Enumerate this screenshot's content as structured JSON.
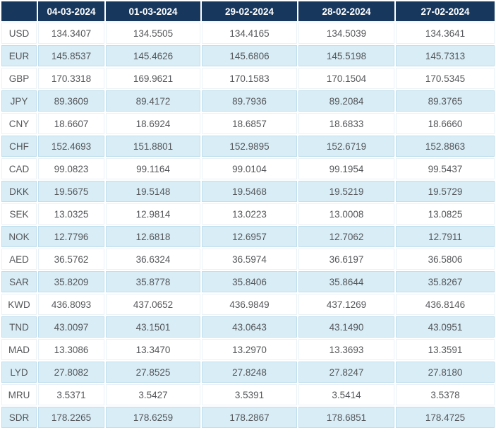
{
  "table": {
    "columns": [
      "",
      "04-03-2024",
      "01-03-2024",
      "29-02-2024",
      "28-02-2024",
      "27-02-2024"
    ],
    "rows": [
      {
        "code": "USD",
        "values": [
          "134.3407",
          "134.5505",
          "134.4165",
          "134.5039",
          "134.3641"
        ]
      },
      {
        "code": "EUR",
        "values": [
          "145.8537",
          "145.4626",
          "145.6806",
          "145.5198",
          "145.7313"
        ]
      },
      {
        "code": "GBP",
        "values": [
          "170.3318",
          "169.9621",
          "170.1583",
          "170.1504",
          "170.5345"
        ]
      },
      {
        "code": "JPY",
        "values": [
          "89.3609",
          "89.4172",
          "89.7936",
          "89.2084",
          "89.3765"
        ]
      },
      {
        "code": "CNY",
        "values": [
          "18.6607",
          "18.6924",
          "18.6857",
          "18.6833",
          "18.6660"
        ]
      },
      {
        "code": "CHF",
        "values": [
          "152.4693",
          "151.8801",
          "152.9895",
          "152.6719",
          "152.8863"
        ]
      },
      {
        "code": "CAD",
        "values": [
          "99.0823",
          "99.1164",
          "99.0104",
          "99.1954",
          "99.5437"
        ]
      },
      {
        "code": "DKK",
        "values": [
          "19.5675",
          "19.5148",
          "19.5468",
          "19.5219",
          "19.5729"
        ]
      },
      {
        "code": "SEK",
        "values": [
          "13.0325",
          "12.9814",
          "13.0223",
          "13.0008",
          "13.0825"
        ]
      },
      {
        "code": "NOK",
        "values": [
          "12.7796",
          "12.6818",
          "12.6957",
          "12.7062",
          "12.7911"
        ]
      },
      {
        "code": "AED",
        "values": [
          "36.5762",
          "36.6324",
          "36.5974",
          "36.6197",
          "36.5806"
        ]
      },
      {
        "code": "SAR",
        "values": [
          "35.8209",
          "35.8778",
          "35.8406",
          "35.8644",
          "35.8267"
        ]
      },
      {
        "code": "KWD",
        "values": [
          "436.8093",
          "437.0652",
          "436.9849",
          "437.1269",
          "436.8146"
        ]
      },
      {
        "code": "TND",
        "values": [
          "43.0097",
          "43.1501",
          "43.0643",
          "43.1490",
          "43.0951"
        ]
      },
      {
        "code": "MAD",
        "values": [
          "13.3086",
          "13.3470",
          "13.2970",
          "13.3693",
          "13.3591"
        ]
      },
      {
        "code": "LYD",
        "values": [
          "27.8082",
          "27.8525",
          "27.8248",
          "27.8247",
          "27.8180"
        ]
      },
      {
        "code": "MRU",
        "values": [
          "3.5371",
          "3.5427",
          "3.5391",
          "3.5414",
          "3.5378"
        ]
      },
      {
        "code": "SDR",
        "values": [
          "178.2265",
          "178.6259",
          "178.2867",
          "178.6851",
          "178.4725"
        ]
      }
    ],
    "colors": {
      "header_bg": "#17375d",
      "header_text": "#ffffff",
      "stripe_bg": "#d9edf6",
      "row_text": "#55575a",
      "stripe_border": "#bfdeed",
      "white_border": "#eaf2f7"
    }
  }
}
